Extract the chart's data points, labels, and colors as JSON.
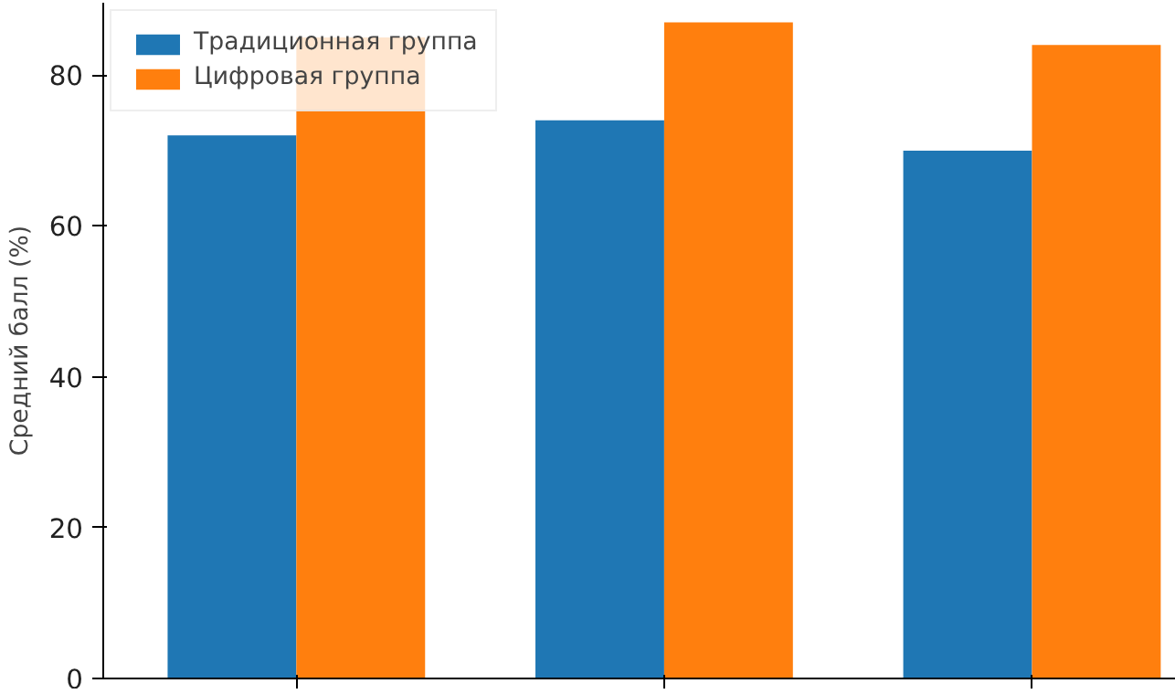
{
  "chart_data": {
    "type": "bar",
    "ylabel": "Средний балл (%)",
    "categories": [
      null,
      null,
      null
    ],
    "series": [
      {
        "name": "Традиционная группа",
        "color": "#1f77b4",
        "values": [
          72,
          74,
          70
        ]
      },
      {
        "name": "Цифровая группа",
        "color": "#ff7f0e",
        "values": [
          85,
          87,
          84
        ]
      }
    ],
    "ylim": [
      0,
      89.6
    ],
    "yticks": [
      0,
      20,
      40,
      60,
      80
    ],
    "grid": false,
    "legend": "top left"
  }
}
